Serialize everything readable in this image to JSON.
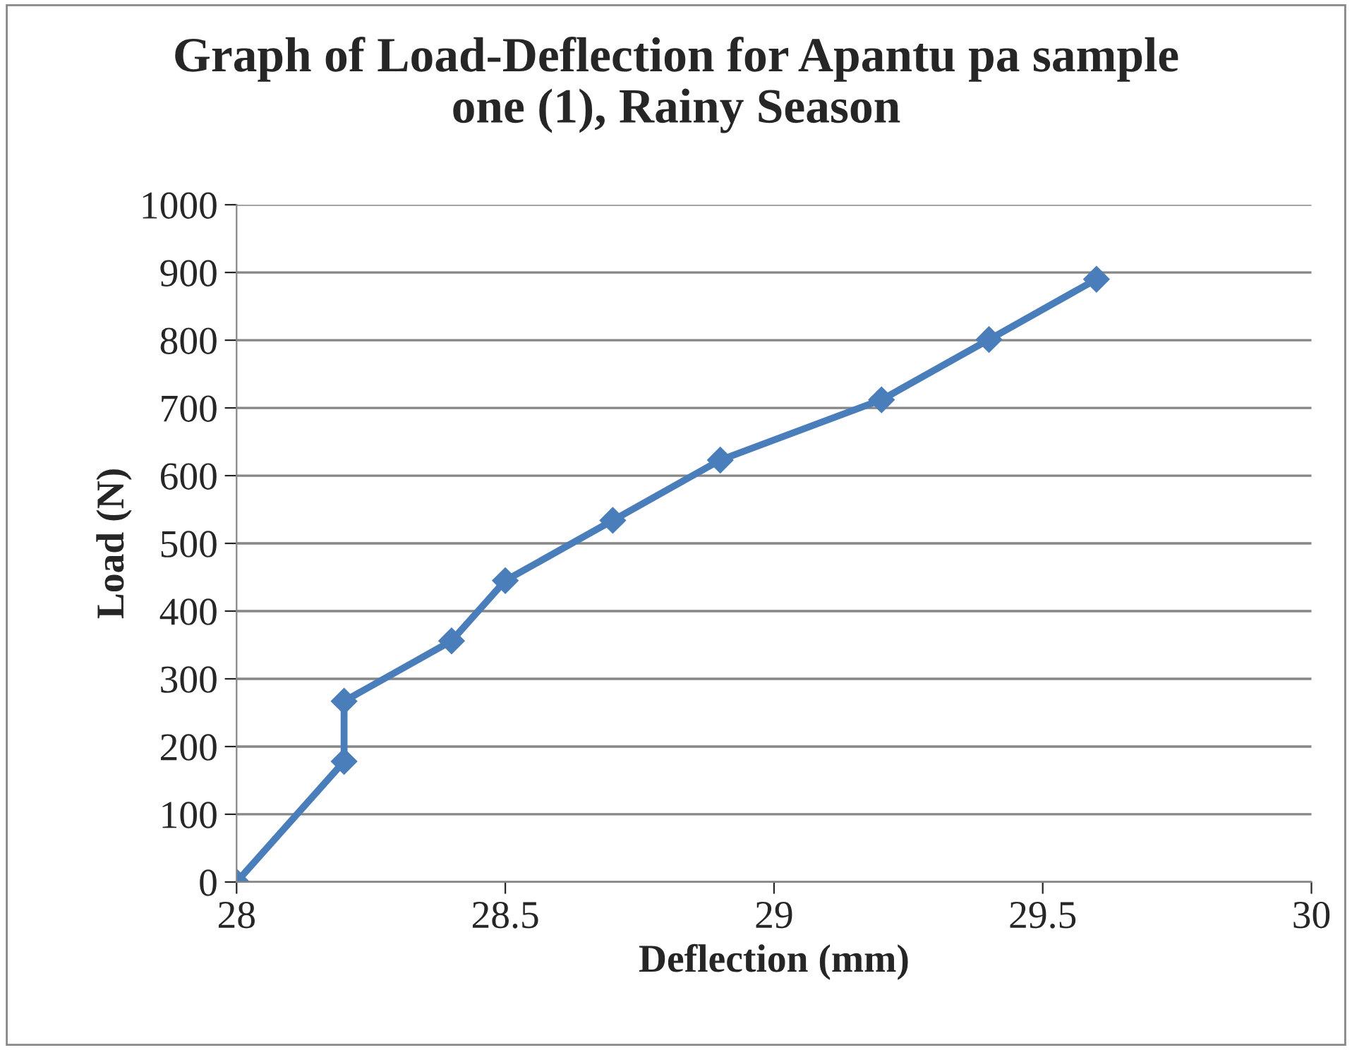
{
  "chart_data": {
    "type": "line",
    "title": "Graph of Load-Deflection for Apantu pa sample\none (1), Rainy Season",
    "xlabel": "Deflection (mm)",
    "ylabel": "Load (N)",
    "series": [
      {
        "color": "#4a7ebb",
        "x": [
          28,
          28.2,
          28.2,
          28.4,
          28.5,
          28.7,
          28.9,
          29.2,
          29.4,
          29.6
        ],
        "values": [
          0,
          178,
          267,
          356,
          445,
          534,
          623,
          712,
          801,
          890
        ]
      }
    ],
    "xlim": [
      28,
      30
    ],
    "xticks": [
      28,
      28.5,
      29,
      29.5,
      30
    ],
    "ylim": [
      0,
      1000
    ],
    "yticks": [
      0,
      100,
      200,
      300,
      400,
      500,
      600,
      700,
      800,
      900,
      1000
    ],
    "grid": "y",
    "marker": "diamond",
    "line_style": "solid"
  }
}
